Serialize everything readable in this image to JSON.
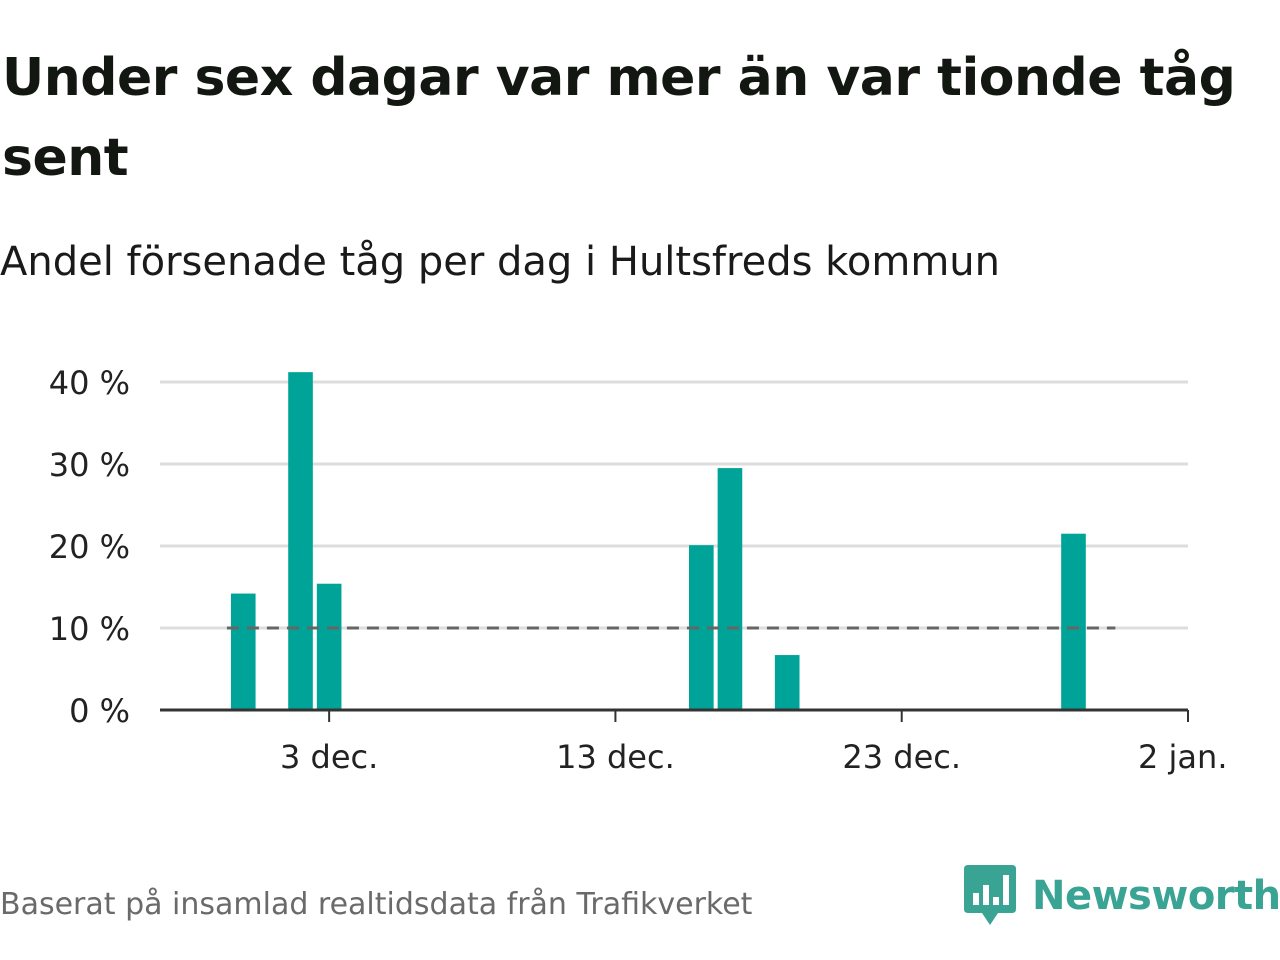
{
  "title": "Under sex dagar var mer än var tionde tåg sent",
  "subtitle": "Andel försenade tåg per dag i Hultsfreds kommun",
  "source": "Baserat på insamlad realtidsdata från Trafikverket",
  "brand": {
    "name": "Newsworthy",
    "color": "#3aa494",
    "icon": "newsworthy-chart-bubble-icon"
  },
  "colors": {
    "bar": "#00a398",
    "reference_line": "#666666",
    "gridline": "#dddddd",
    "axis": "#333333"
  },
  "chart_data": {
    "type": "bar",
    "title": "Under sex dagar var mer än var tionde tåg sent",
    "subtitle": "Andel försenade tåg per dag i Hultsfreds kommun",
    "xlabel": "",
    "ylabel": "",
    "x_axis_type": "date",
    "x_domain": [
      "2024-11-28",
      "2025-01-02"
    ],
    "x_ticks": [
      {
        "date": "2024-12-03",
        "label": "3 dec."
      },
      {
        "date": "2024-12-13",
        "label": "13 dec."
      },
      {
        "date": "2024-12-23",
        "label": "23 dec."
      },
      {
        "date": "2025-01-02",
        "label": "2 jan."
      }
    ],
    "y_ticks": [
      {
        "value": 0,
        "label": "0 %"
      },
      {
        "value": 10,
        "label": "10 %"
      },
      {
        "value": 20,
        "label": "20 %"
      },
      {
        "value": 30,
        "label": "30 %"
      },
      {
        "value": 40,
        "label": "40 %"
      }
    ],
    "ylim": [
      0,
      40
    ],
    "grid": true,
    "reference_line": {
      "value": 10,
      "style": "dashed",
      "from": "2024-11-30",
      "to": "2025-01-01"
    },
    "series": [
      {
        "x": [
          "2024-11-30",
          "2024-12-02",
          "2024-12-03",
          "2024-12-16",
          "2024-12-17",
          "2024-12-19",
          "2024-12-29"
        ],
        "values": [
          14.2,
          41.2,
          15.4,
          20.1,
          29.5,
          6.7,
          21.5
        ]
      }
    ]
  }
}
